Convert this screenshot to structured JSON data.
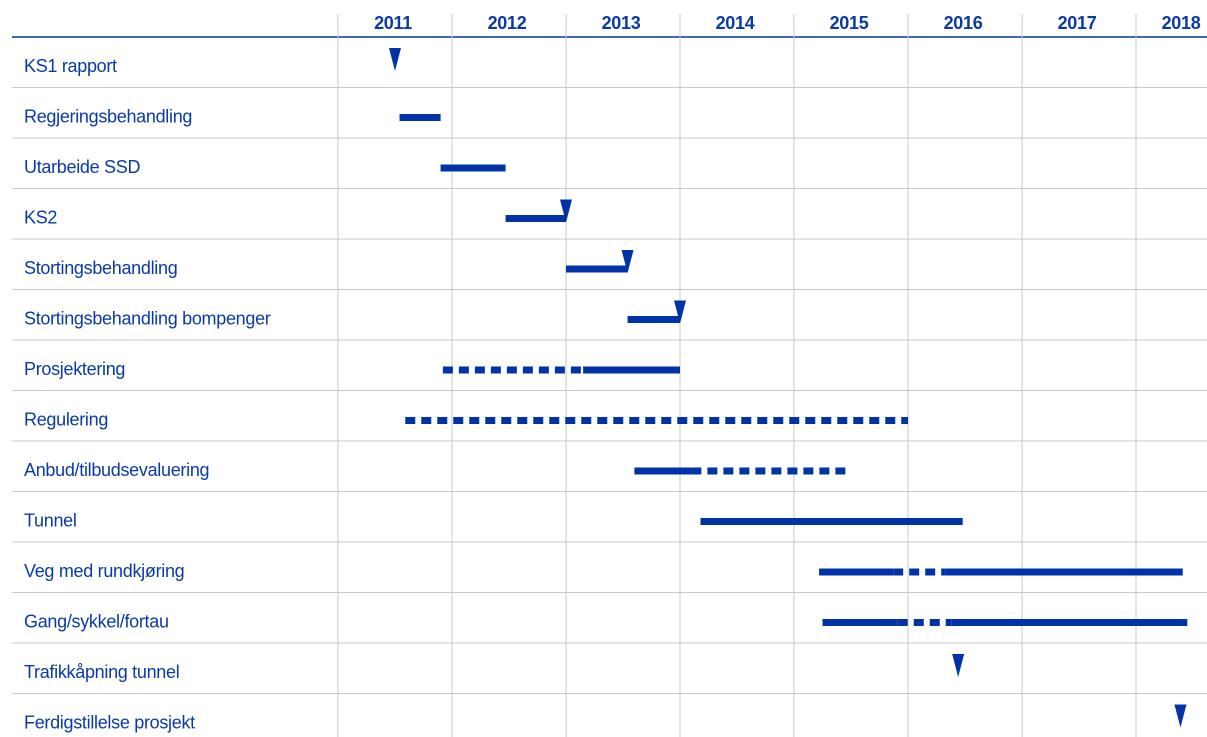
{
  "chart_data": {
    "type": "gantt",
    "color": "#0033a8",
    "xlim": [
      2011,
      2019
    ],
    "xticks": [
      2011,
      2012,
      2013,
      2014,
      2015,
      2016,
      2017,
      2018
    ],
    "grid": true,
    "tasks": [
      {
        "name": "KS1 rapport",
        "segments": [],
        "milestones": [
          2011.5
        ]
      },
      {
        "name": "Regjeringsbehandling",
        "segments": [
          {
            "start": 2011.54,
            "end": 2011.9,
            "style": "solid"
          }
        ],
        "milestones": []
      },
      {
        "name": "Utarbeide SSD",
        "segments": [
          {
            "start": 2011.9,
            "end": 2012.47,
            "style": "solid"
          }
        ],
        "milestones": []
      },
      {
        "name": "KS2",
        "segments": [
          {
            "start": 2012.47,
            "end": 2013.0,
            "style": "solid"
          }
        ],
        "milestones": [
          2013.0
        ]
      },
      {
        "name": "Stortingsbehandling",
        "segments": [
          {
            "start": 2013.0,
            "end": 2013.54,
            "style": "solid"
          }
        ],
        "milestones": [
          2013.54
        ]
      },
      {
        "name": "Stortingsbehandling bompenger",
        "segments": [
          {
            "start": 2013.54,
            "end": 2014.0,
            "style": "solid"
          }
        ],
        "milestones": [
          2014.0
        ]
      },
      {
        "name": "Prosjektering",
        "segments": [
          {
            "start": 2011.92,
            "end": 2013.15,
            "style": "dashed"
          },
          {
            "start": 2013.15,
            "end": 2014.0,
            "style": "solid"
          }
        ],
        "milestones": []
      },
      {
        "name": "Regulering",
        "segments": [
          {
            "start": 2011.59,
            "end": 2016.0,
            "style": "dashed"
          }
        ],
        "milestones": []
      },
      {
        "name": "Anbud/tilbudsevaluering",
        "segments": [
          {
            "start": 2013.6,
            "end": 2014.1,
            "style": "solid"
          },
          {
            "start": 2014.1,
            "end": 2015.48,
            "style": "dashed"
          }
        ],
        "milestones": []
      },
      {
        "name": "Tunnel",
        "segments": [
          {
            "start": 2014.18,
            "end": 2016.48,
            "style": "solid"
          }
        ],
        "milestones": []
      },
      {
        "name": "Veg med rundkjøring",
        "segments": [
          {
            "start": 2015.22,
            "end": 2015.87,
            "style": "solid"
          },
          {
            "start": 2015.87,
            "end": 2016.33,
            "style": "dashed"
          },
          {
            "start": 2016.33,
            "end": 2018.41,
            "style": "solid"
          }
        ],
        "milestones": []
      },
      {
        "name": "Gang/sykkel/fortau",
        "segments": [
          {
            "start": 2015.25,
            "end": 2015.91,
            "style": "solid"
          },
          {
            "start": 2015.91,
            "end": 2016.38,
            "style": "dashed"
          },
          {
            "start": 2016.38,
            "end": 2018.45,
            "style": "solid"
          }
        ],
        "milestones": []
      },
      {
        "name": "Trafikkåpning tunnel",
        "segments": [],
        "milestones": [
          2016.44
        ]
      },
      {
        "name": "Ferdigstillelse prosjekt",
        "segments": [],
        "milestones": [
          2018.39
        ]
      }
    ]
  }
}
